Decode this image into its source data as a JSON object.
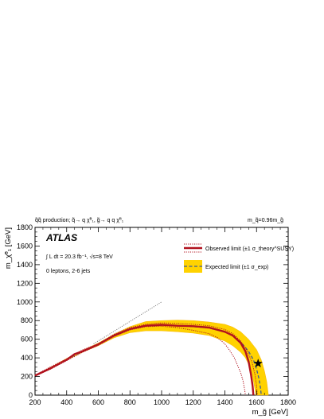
{
  "header": {
    "process": "q̃q̃ production; q̃→ q χ̃⁰₁, g̃→ q q χ̃⁰₁",
    "mass_relation": "m_q̃=0.96m_g̃"
  },
  "atlas_label": "ATLAS",
  "annotations": {
    "lumi": "∫ L dt = 20.3 fb⁻¹,  √s=8 TeV",
    "selection": "0 leptons, 2-6 jets"
  },
  "legend": {
    "observed": "Observed limit (±1 σ_theory^SUSY)",
    "expected": "Expected limit (±1 σ_exp)"
  },
  "colors": {
    "observed": "#b1111e",
    "expected_line": "#3b5998",
    "band": "#ffd200",
    "band_edge": "#f2a900"
  },
  "chart_data": {
    "type": "line",
    "title": "",
    "xlabel": "m_g̃ [GeV]",
    "ylabel": "m_χ̃⁰₁ [GeV]",
    "xlim": [
      200,
      1800
    ],
    "ylim": [
      0,
      1800
    ],
    "xticks": [
      200,
      400,
      600,
      800,
      1000,
      1200,
      1400,
      1600,
      1800
    ],
    "yticks": [
      0,
      200,
      400,
      600,
      800,
      1000,
      1200,
      1400,
      1600,
      1800
    ],
    "grid": false,
    "legend_position": "top-right",
    "series": [
      {
        "name": "Observed limit",
        "style": "solid",
        "x": [
          200,
          300,
          400,
          450,
          500,
          600,
          700,
          800,
          900,
          1000,
          1100,
          1200,
          1300,
          1400,
          1450,
          1500,
          1530,
          1550,
          1565,
          1575,
          1580
        ],
        "y": [
          210,
          290,
          380,
          440,
          470,
          545,
          640,
          710,
          745,
          755,
          745,
          740,
          725,
          680,
          640,
          560,
          470,
          360,
          220,
          100,
          0
        ]
      },
      {
        "name": "Observed limit +1σ",
        "style": "dotted",
        "x": [
          200,
          300,
          400,
          500,
          600,
          700,
          800,
          900,
          960,
          1000,
          1100,
          1200,
          1300,
          1400,
          1450,
          1500,
          1540,
          1570,
          1590,
          1600,
          1605
        ],
        "y": [
          215,
          305,
          390,
          485,
          550,
          655,
          725,
          760,
          770,
          775,
          770,
          760,
          745,
          705,
          660,
          580,
          480,
          360,
          220,
          100,
          0
        ]
      },
      {
        "name": "Observed limit −1σ",
        "style": "dotted",
        "x": [
          200,
          300,
          400,
          500,
          600,
          700,
          800,
          900,
          1000,
          1100,
          1200,
          1300,
          1350,
          1400,
          1430,
          1460,
          1480,
          1500,
          1515,
          1525,
          1530
        ],
        "y": [
          205,
          280,
          370,
          460,
          535,
          630,
          700,
          735,
          740,
          725,
          695,
          660,
          620,
          550,
          480,
          400,
          320,
          240,
          150,
          60,
          0
        ]
      },
      {
        "name": "Expected limit",
        "style": "dashed",
        "x": [
          200,
          300,
          400,
          500,
          600,
          700,
          800,
          900,
          1000,
          1100,
          1200,
          1300,
          1400,
          1450,
          1500,
          1550,
          1580,
          1600,
          1615,
          1625,
          1630
        ],
        "y": [
          210,
          290,
          385,
          470,
          545,
          635,
          705,
          740,
          750,
          745,
          735,
          720,
          680,
          640,
          570,
          470,
          380,
          280,
          180,
          80,
          0
        ]
      },
      {
        "name": "Expected band upper",
        "style": "band",
        "x": [
          200,
          300,
          400,
          500,
          600,
          700,
          800,
          900,
          1000,
          1100,
          1200,
          1300,
          1400,
          1450,
          1500,
          1550,
          1600,
          1630,
          1650,
          1665,
          1675
        ],
        "y": [
          215,
          300,
          395,
          480,
          560,
          655,
          735,
          790,
          800,
          805,
          800,
          785,
          760,
          730,
          680,
          600,
          490,
          380,
          260,
          140,
          0
        ]
      },
      {
        "name": "Expected band lower",
        "style": "band",
        "x": [
          200,
          300,
          400,
          500,
          600,
          700,
          800,
          900,
          1000,
          1100,
          1200,
          1300,
          1400,
          1450,
          1500,
          1530,
          1550,
          1570,
          1580,
          1590,
          1595
        ],
        "y": [
          205,
          280,
          375,
          460,
          530,
          615,
          670,
          690,
          690,
          680,
          665,
          640,
          580,
          530,
          460,
          400,
          330,
          240,
          150,
          60,
          0
        ]
      },
      {
        "name": "Kinematic limit",
        "style": "dotted-gray",
        "x": [
          570,
          1000
        ],
        "y": [
          550,
          1000
        ]
      }
    ],
    "markers": [
      {
        "name": "benchmark",
        "symbol": "star",
        "x": 1610,
        "y": 340
      }
    ]
  }
}
